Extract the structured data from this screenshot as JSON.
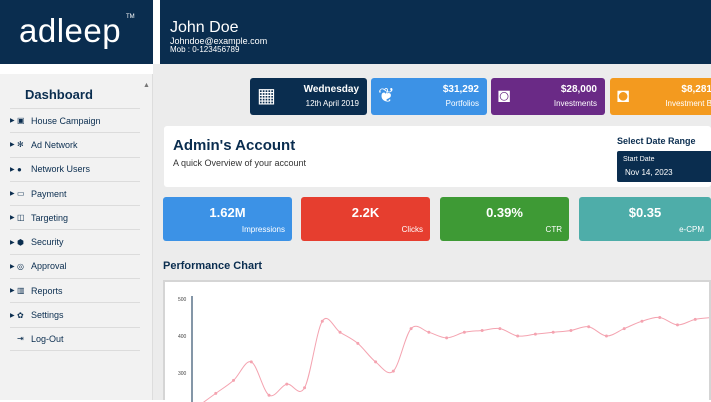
{
  "brand": {
    "logo": "adleep",
    "tm": "TM"
  },
  "user": {
    "name": "John Doe",
    "email": "Johndoe@example.com",
    "mobile": "Mob : 0-123456789"
  },
  "sidebar": {
    "title": "Dashboard",
    "items": [
      {
        "label": "House Campaign",
        "icon": "house-campaign-icon"
      },
      {
        "label": "Ad Network",
        "icon": "ad-network-icon"
      },
      {
        "label": "Network Users",
        "icon": "users-icon"
      },
      {
        "label": "Payment",
        "icon": "payment-icon"
      },
      {
        "label": "Targeting",
        "icon": "targeting-icon"
      },
      {
        "label": "Security",
        "icon": "security-icon"
      },
      {
        "label": "Approval",
        "icon": "approval-icon"
      },
      {
        "label": "Reports",
        "icon": "reports-icon"
      },
      {
        "label": "Settings",
        "icon": "gear-icon"
      },
      {
        "label": "Log-Out",
        "icon": "logout-icon"
      }
    ]
  },
  "stats": {
    "date": {
      "day": "Wednesday",
      "date": "12th April 2019",
      "icon": "calendar-icon"
    },
    "portfolios": {
      "value": "$31,292",
      "label": "Portfolios",
      "icon": "plant-icon"
    },
    "investments": {
      "value": "$28,000",
      "label": "Investments",
      "icon": "briefcase-icon"
    },
    "investments2": {
      "value": "$8,281",
      "label": "Investment B",
      "icon": "money-icon"
    }
  },
  "admin": {
    "title": "Admin's Account",
    "subtitle": "A quick Overview of your account",
    "date_range_label": "Select Date Range",
    "start_date_label": "Start Date",
    "start_date_value": "Nov 14, 2023"
  },
  "metrics": [
    {
      "value": "1.62M",
      "label": "Impressions",
      "color": "#3c92e6"
    },
    {
      "value": "2.2K",
      "label": "Clicks",
      "color": "#e63e2f"
    },
    {
      "value": "0.39%",
      "label": "CTR",
      "color": "#3e9a35"
    },
    {
      "value": "$0.35",
      "label": "e-CPM",
      "color": "#4eada9"
    }
  ],
  "performance": {
    "title": "Performance Chart",
    "y_ticks": [
      "500",
      "400",
      "300"
    ]
  },
  "chart_data": {
    "type": "line",
    "ylim": [
      200,
      520
    ],
    "y_ticks": [
      300,
      400,
      500
    ],
    "series": [
      {
        "color": "#f4a3b0",
        "values": [
          210,
          245,
          280,
          330,
          240,
          270,
          260,
          440,
          410,
          380,
          330,
          305,
          420,
          410,
          395,
          410,
          415,
          420,
          400,
          405,
          410,
          415,
          425,
          400,
          420,
          440,
          450,
          430,
          445,
          450
        ]
      }
    ]
  },
  "colors": {
    "navy": "#0a2d4f",
    "bg": "#ececec"
  }
}
